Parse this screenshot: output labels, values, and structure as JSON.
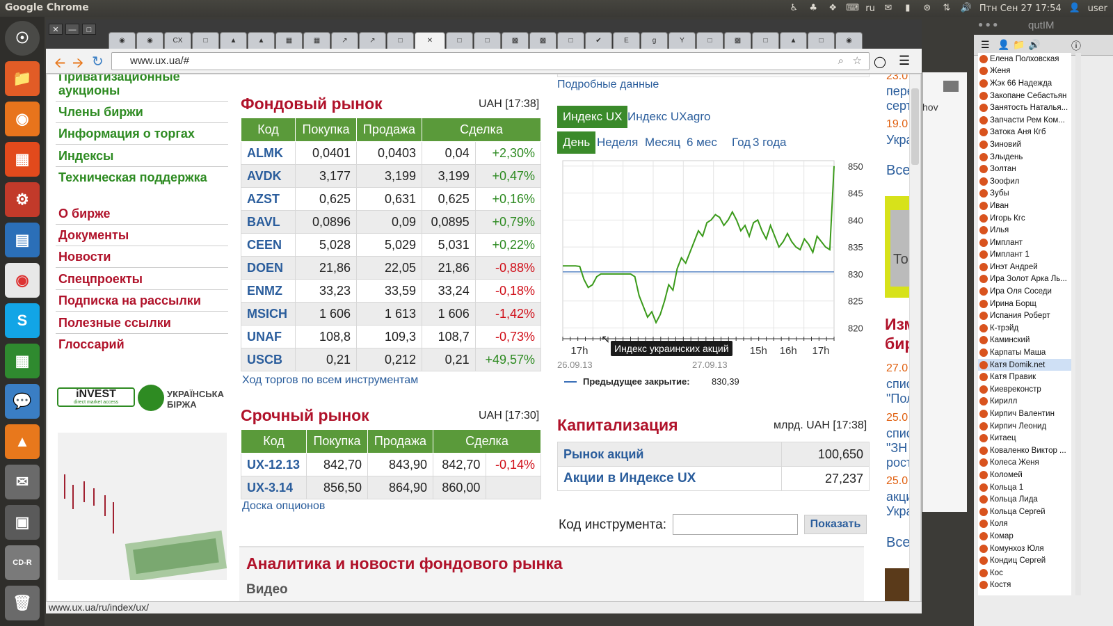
{
  "topbar": {
    "app_name": "Google Chrome",
    "keyboard_layout": "ru",
    "datetime": "Птн Сен 27 17:54",
    "username": "user"
  },
  "browser": {
    "url": "www.ux.ua/#",
    "status_url": "www.ux.ua/ru/index/ux/"
  },
  "leftnav": {
    "green_items": [
      "Приватизационные",
      "аукционы",
      "Члены биржи",
      "Информация о торгах",
      "Индексы",
      "Техническая поддержка"
    ],
    "red_items": [
      "О бирже",
      "Документы",
      "Новости",
      "Спецпроекты",
      "Подписка на рассылки",
      "Полезные ссылки",
      "Глоссарий"
    ],
    "invest_logo": "iNVEST",
    "invest_sub": "direct market access",
    "ux_logo_line1": "УКРАЇНСЬКА",
    "ux_logo_line2": "БІРЖА"
  },
  "stock_market": {
    "title": "Фондовый рынок",
    "timestamp": "UAH [17:38]",
    "headers": [
      "Код",
      "Покупка",
      "Продажа",
      "Сделка"
    ],
    "rows": [
      {
        "code": "ALMK",
        "buy": "0,0401",
        "sell": "0,0403",
        "deal": "0,04",
        "change": "+2,30%"
      },
      {
        "code": "AVDK",
        "buy": "3,177",
        "sell": "3,199",
        "deal": "3,199",
        "change": "+0,47%"
      },
      {
        "code": "AZST",
        "buy": "0,625",
        "sell": "0,631",
        "deal": "0,625",
        "change": "+0,16%"
      },
      {
        "code": "BAVL",
        "buy": "0,0896",
        "sell": "0,09",
        "deal": "0,0895",
        "change": "+0,79%"
      },
      {
        "code": "CEEN",
        "buy": "5,028",
        "sell": "5,029",
        "deal": "5,031",
        "change": "+0,22%"
      },
      {
        "code": "DOEN",
        "buy": "21,86",
        "sell": "22,05",
        "deal": "21,86",
        "change": "-0,88%"
      },
      {
        "code": "ENMZ",
        "buy": "33,23",
        "sell": "33,59",
        "deal": "33,24",
        "change": "-0,18%"
      },
      {
        "code": "MSICH",
        "buy": "1 606",
        "sell": "1 613",
        "deal": "1 606",
        "change": "-1,42%"
      },
      {
        "code": "UNAF",
        "buy": "108,8",
        "sell": "109,3",
        "deal": "108,7",
        "change": "-0,73%"
      },
      {
        "code": "USCB",
        "buy": "0,21",
        "sell": "0,212",
        "deal": "0,21",
        "change": "+49,57%"
      }
    ],
    "all_instruments_link": "Ход торгов по всем инструментам"
  },
  "futures_market": {
    "title": "Срочный рынок",
    "timestamp": "UAH [17:30]",
    "headers": [
      "Код",
      "Покупка",
      "Продажа",
      "Сделка"
    ],
    "rows": [
      {
        "code": "UX-12.13",
        "buy": "842,70",
        "sell": "843,90",
        "deal": "842,70",
        "change": "-0,14%"
      },
      {
        "code": "UX-3.14",
        "buy": "856,50",
        "sell": "864,90",
        "deal": "860,00",
        "change": ""
      }
    ],
    "options_link": "Доска опционов"
  },
  "index_panel": {
    "details_link": "Подробные данные",
    "index_tabs": [
      "Индекс UX",
      "Индекс UXagro"
    ],
    "period_tabs": [
      "День",
      "Неделя",
      "Месяц",
      "6 мес",
      "Год",
      "3 года"
    ],
    "tooltip": "Индекс украинских акций",
    "date_left": "26.09.13",
    "date_right": "27.09.13",
    "legend_label": "Предыдущее закрытие:",
    "legend_value": "830,39"
  },
  "chart_data": {
    "type": "line",
    "title": "",
    "x_tick_labels": [
      "17h",
      "15h",
      "16h",
      "17h"
    ],
    "y_tick_labels": [
      "820",
      "825",
      "830",
      "835",
      "840",
      "845",
      "850"
    ],
    "ylim": [
      818,
      851
    ],
    "grid": true,
    "previous_close": 830.39,
    "series": [
      {
        "name": "Индекс UX",
        "values": [
          831.5,
          831.5,
          831.5,
          831.5,
          831.4,
          829,
          827.5,
          828,
          829.5,
          830,
          830,
          830,
          830,
          830,
          830,
          830,
          830,
          829.5,
          826,
          824,
          822,
          823,
          821,
          822.5,
          825,
          828,
          827,
          831,
          833,
          832,
          834,
          836,
          838,
          837,
          839.5,
          840,
          841,
          840.5,
          839,
          840,
          841.5,
          840,
          838,
          839,
          837,
          839.5,
          840,
          838,
          836.5,
          839,
          837,
          835,
          836,
          837.5,
          836,
          835,
          834.5,
          836.5,
          835.5,
          834,
          837,
          836,
          835,
          834.5,
          850
        ]
      }
    ]
  },
  "capitalization": {
    "title": "Капитализация",
    "unit": "млрд. UAH [17:38]",
    "rows": [
      {
        "label": "Рынок акций",
        "value": "100,650"
      },
      {
        "label": "Акции в Индексе UX",
        "value": "27,237"
      }
    ]
  },
  "lookup": {
    "label": "Код инструмента:",
    "input_value": "",
    "button": "Показать"
  },
  "analytics": {
    "title": "Аналитика и новости фондового рынка",
    "subtitle": "Видео"
  },
  "right_column": {
    "items": [
      "23.0",
      "пере",
      "серт",
      "19.0",
      "Укра",
      "Все",
      "То",
      "Изм",
      "бир",
      "27.0",
      "спис",
      "\"Пол",
      "25.0",
      "спис",
      "\"ЗН",
      "рост",
      "25.0",
      "акци",
      "Укра",
      "Все"
    ]
  },
  "qutim": {
    "title": "qutIM",
    "behind_text": "hov",
    "contacts": [
      "Елена Полховская",
      "Женя",
      "Жэк 66 Надежда",
      "Закопане Себастьян",
      "Занятость Наталья...",
      "Запчасти Рем Ком...",
      "Затока Аня Кгб",
      "Зиновий",
      "Злыдень",
      "Золтан",
      "Зоофил",
      "Зубы",
      "Иван",
      "Игорь Кгс",
      "Илья",
      "Имплант",
      "Имплант 1",
      "Инэт Андрей",
      "Ира Золот Арка Ль...",
      "Ира Оля Соседи",
      "Ирина Борщ",
      "Испания Роберт",
      "К-трэйд",
      "Каминский",
      "Карпаты Маша",
      "Катя Domik.net",
      "Катя Правик",
      "Киевреконстр",
      "Кирилл",
      "Кирпич Валентин",
      "Кирпич Леонид",
      "Китаец",
      "Коваленко Виктор ...",
      "Колеса Женя",
      "Коломей",
      "Кольца 1",
      "Кольца Лида",
      "Кольца Сергей",
      "Коля",
      "Комар",
      "Комунхоз Юля",
      "Кондиц Сергей",
      "Кос",
      "Костя"
    ],
    "selected_contact": "Катя Domik.net"
  },
  "colors": {
    "green": "#2e8b22",
    "red": "#b0122a",
    "table_header": "#5a9a3a",
    "link_blue": "#2a5d9c"
  }
}
